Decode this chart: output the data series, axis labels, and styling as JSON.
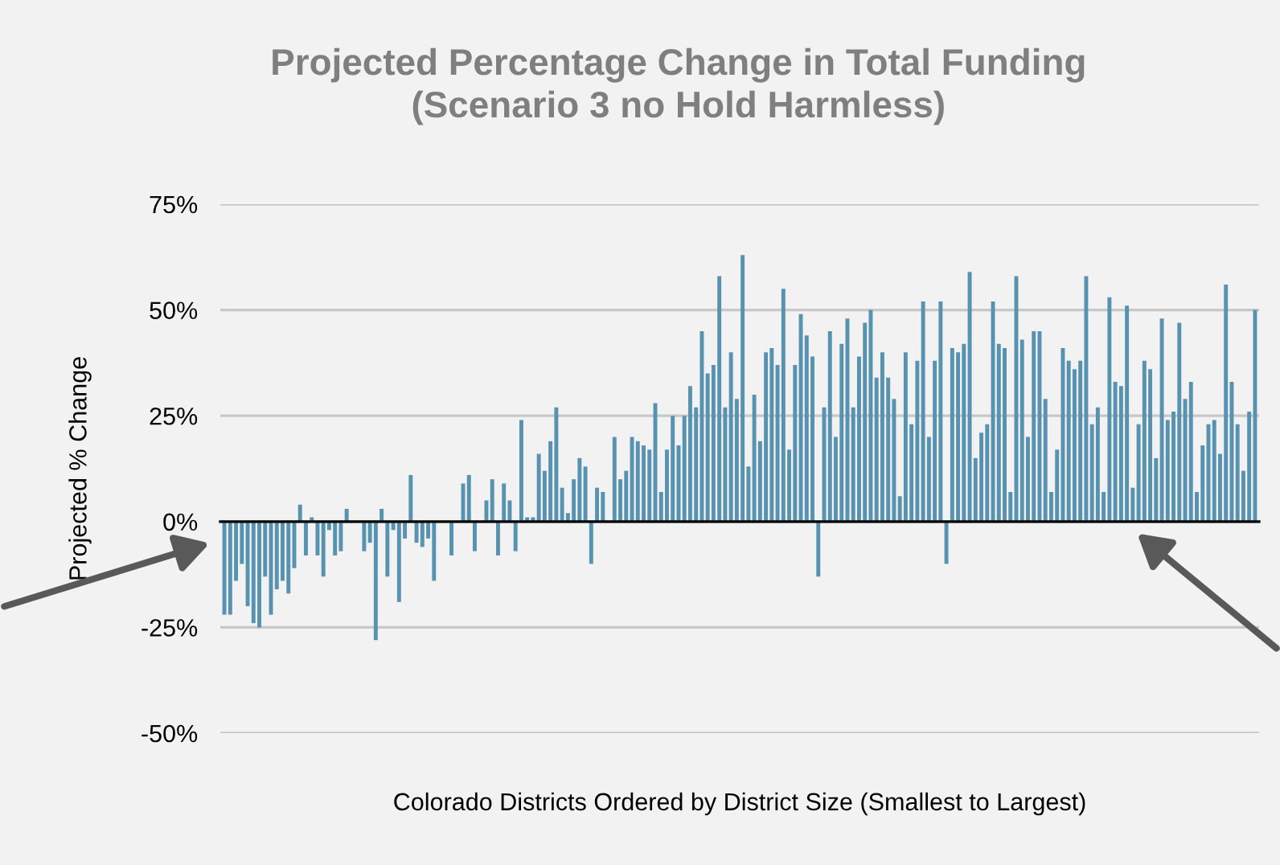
{
  "chart_data": {
    "type": "bar",
    "title": "Projected Percentage Change in Total Funding\n(Scenario 3 no Hold Harmless)",
    "xlabel": "Colorado Districts Ordered by District Size (Smallest to Largest)",
    "ylabel": "Projected % Change",
    "categories": [
      null,
      null,
      null,
      null,
      null,
      null,
      null,
      null,
      null,
      null,
      null,
      null,
      null,
      null,
      null,
      null,
      null,
      null,
      null,
      null,
      null,
      null,
      null,
      null,
      null,
      null,
      null,
      null,
      null,
      null,
      null,
      null,
      null,
      null,
      null,
      null,
      null,
      null,
      null,
      null,
      null,
      null,
      null,
      null,
      null,
      null,
      null,
      null,
      null,
      null,
      null,
      null,
      null,
      null,
      null,
      null,
      null,
      null,
      null,
      null,
      null,
      null,
      null,
      null,
      null,
      null,
      null,
      null,
      null,
      null,
      null,
      null,
      null,
      null,
      null,
      null,
      null,
      null,
      null,
      null,
      null,
      null,
      null,
      null,
      null,
      null,
      null,
      null,
      null,
      null,
      null,
      null,
      null,
      null,
      null,
      null,
      null,
      null,
      null,
      null,
      null,
      null,
      null,
      null,
      null,
      null,
      null,
      null,
      null,
      null,
      null,
      null,
      null,
      null,
      null,
      null,
      null,
      null,
      null,
      null,
      null,
      null,
      null,
      null,
      null,
      null,
      null,
      null,
      null,
      null,
      null,
      null,
      null,
      null,
      null,
      null,
      null,
      null,
      null,
      null,
      null,
      null,
      null,
      null,
      null,
      null,
      null,
      null,
      null,
      null,
      null,
      null,
      null,
      null,
      null,
      null,
      null,
      null,
      null,
      null,
      null,
      null,
      null,
      null,
      null,
      null,
      null,
      null,
      null,
      null,
      null,
      null,
      null,
      null,
      null,
      null,
      null,
      null
    ],
    "values": [
      -22,
      -22,
      -14,
      -10,
      -20,
      -24,
      -25,
      -13,
      -22,
      -16,
      -14,
      -17,
      -11,
      4,
      -8,
      1,
      -8,
      -13,
      -2,
      -8,
      -7,
      3,
      0,
      0,
      -7,
      -5,
      -28,
      3,
      -13,
      -2,
      -19,
      -4,
      11,
      -5,
      -6,
      -4,
      -14,
      0,
      0,
      -8,
      0,
      9,
      11,
      -7,
      0,
      5,
      10,
      -8,
      9,
      5,
      -7,
      24,
      1,
      1,
      16,
      12,
      19,
      27,
      8,
      2,
      10,
      15,
      13,
      -10,
      8,
      7,
      0,
      20,
      10,
      12,
      20,
      19,
      18,
      17,
      28,
      7,
      17,
      25,
      18,
      25,
      32,
      27,
      45,
      35,
      37,
      58,
      27,
      40,
      29,
      63,
      13,
      30,
      19,
      40,
      41,
      37,
      55,
      17,
      37,
      49,
      44,
      39,
      -13,
      27,
      45,
      20,
      42,
      48,
      27,
      39,
      47,
      50,
      34,
      40,
      34,
      29,
      6,
      40,
      23,
      38,
      52,
      20,
      38,
      52,
      -10,
      41,
      40,
      42,
      59,
      15,
      21,
      23,
      52,
      42,
      41,
      7,
      58,
      43,
      20,
      45,
      45,
      29,
      7,
      17,
      41,
      38,
      36,
      38,
      58,
      23,
      27,
      7,
      53,
      33,
      32,
      51,
      8,
      23,
      38,
      36,
      15,
      48,
      24,
      26,
      47,
      29,
      33,
      7,
      18,
      23,
      24,
      16,
      56,
      33,
      23,
      12,
      26,
      50
    ],
    "color": "#5792b0",
    "ylim": [
      -50,
      75
    ],
    "yticks": [
      {
        "value": -50,
        "label": "-50%"
      },
      {
        "value": -25,
        "label": "-25%"
      },
      {
        "value": 0,
        "label": "0%"
      },
      {
        "value": 25,
        "label": "25%"
      },
      {
        "value": 50,
        "label": "50%"
      },
      {
        "value": 75,
        "label": "75%"
      }
    ],
    "grid": "y",
    "legend": false
  }
}
